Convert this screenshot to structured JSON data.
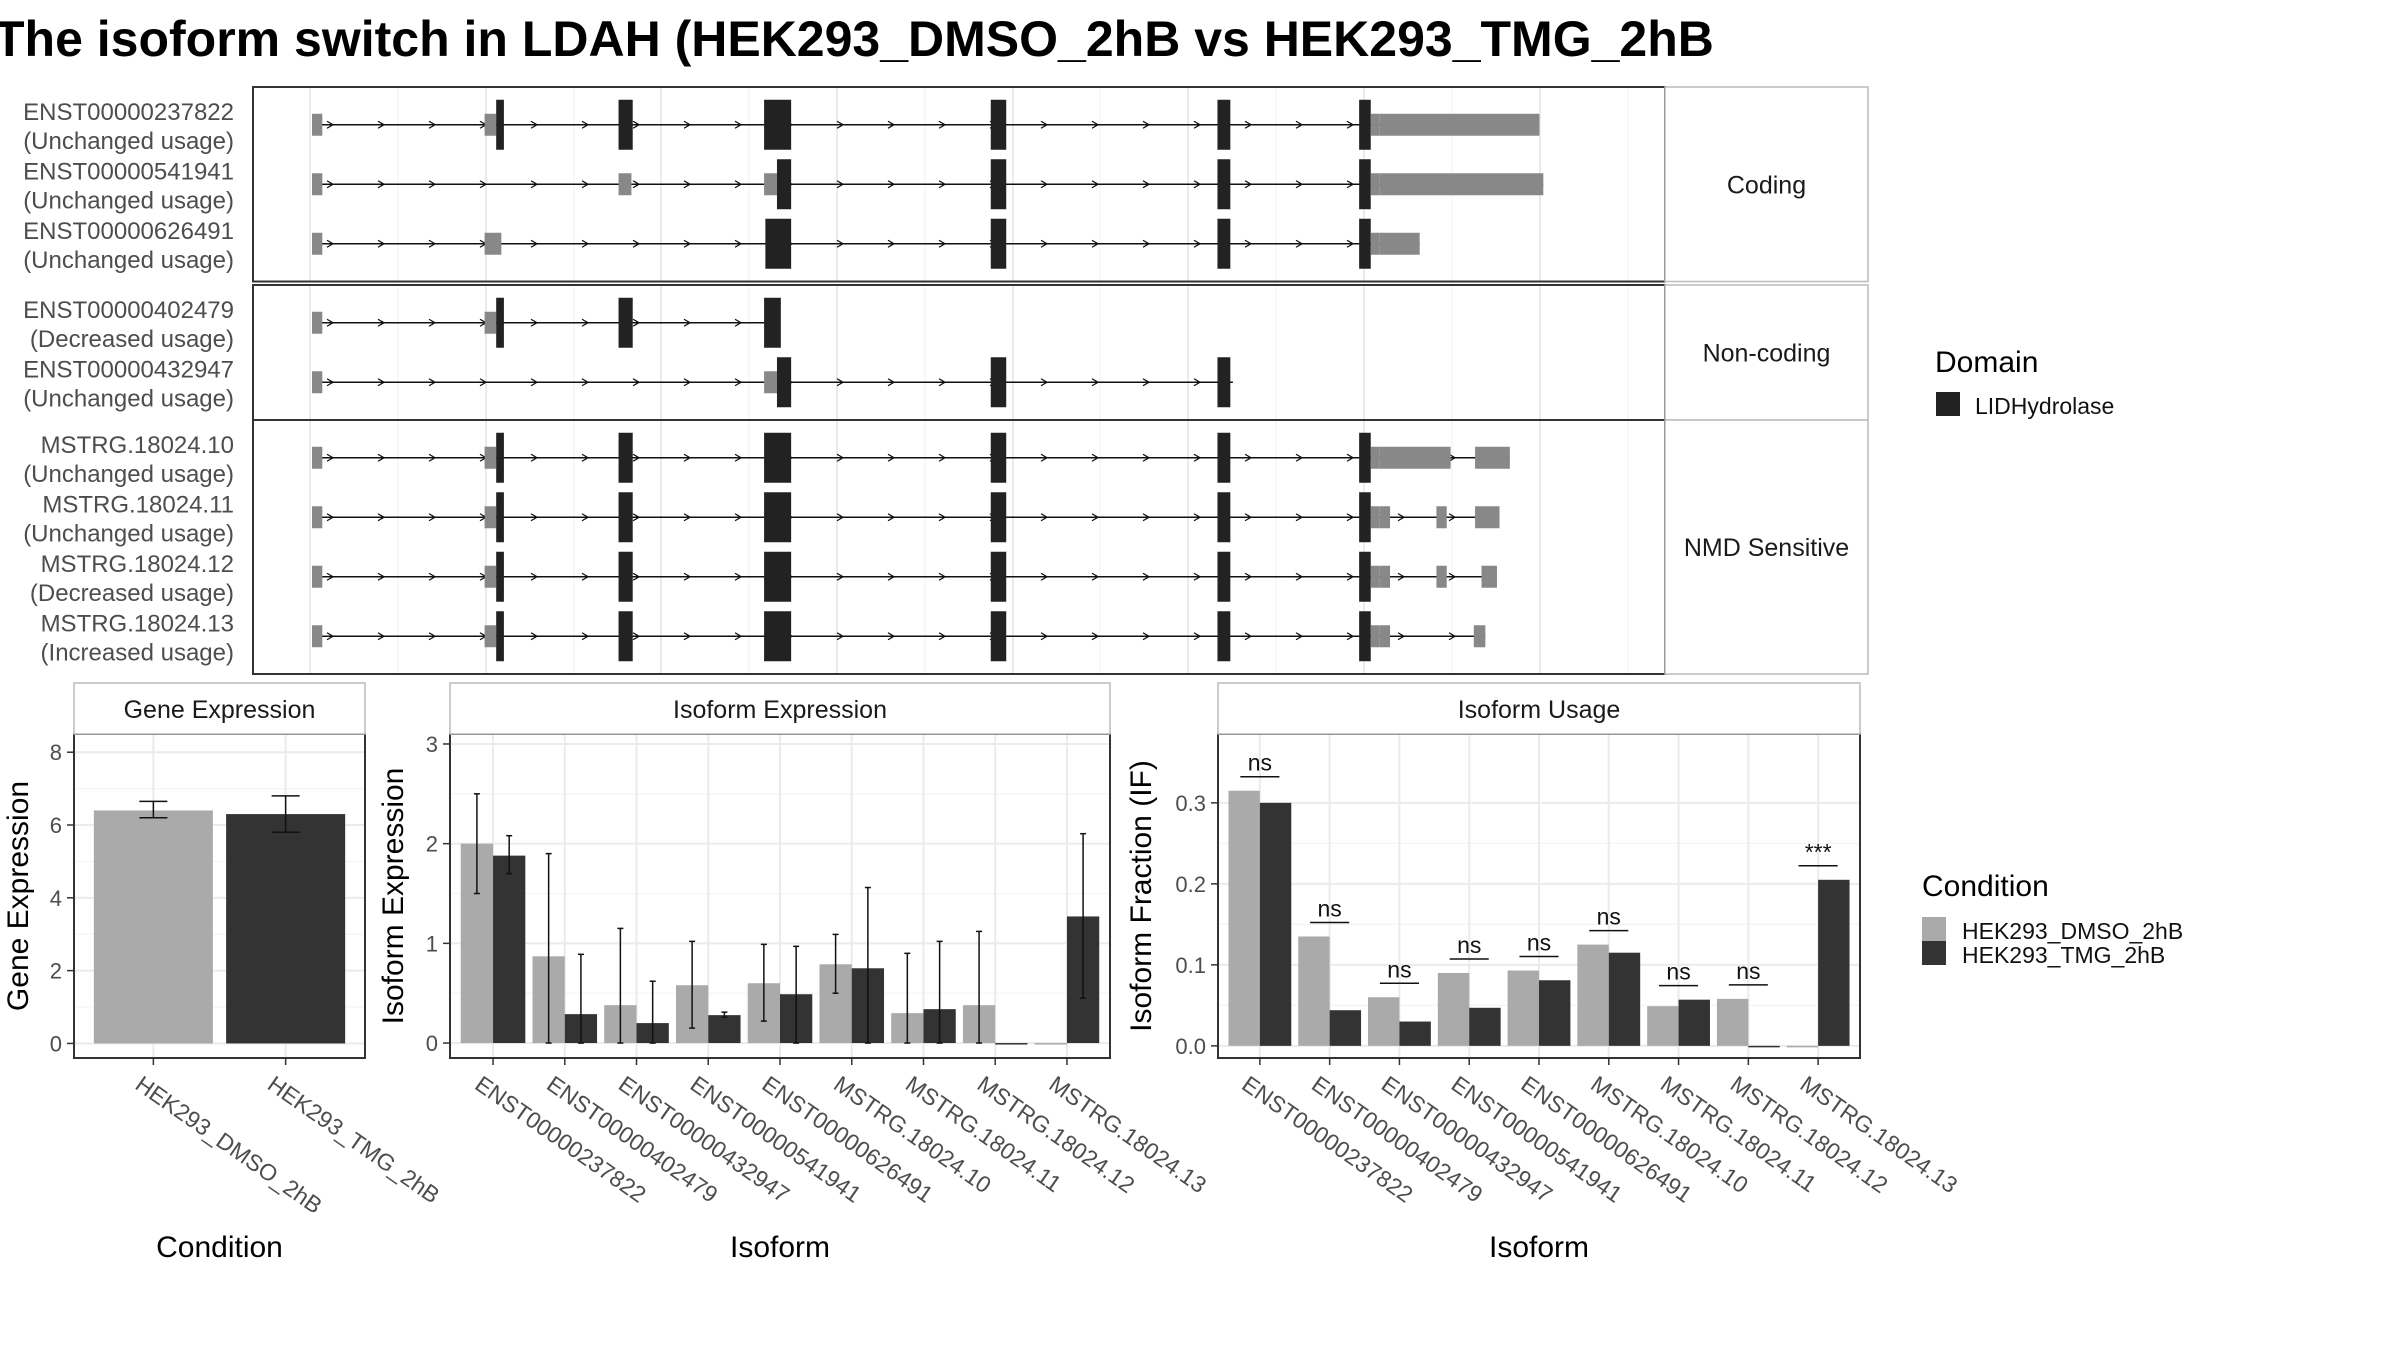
{
  "title": "The isoform switch in LDAH (HEK293_DMSO_2hB vs HEK293_TMG_2hB",
  "colors": {
    "dmso": "#aaaaaa",
    "tmg": "#333333",
    "domain": "#222222",
    "utr": "#888888",
    "grid": "#ebebeb",
    "frame": "#333333",
    "strip_border": "#bbbbbb"
  },
  "structure": {
    "genomic_range": [
      0,
      1000
    ],
    "groups": [
      {
        "label": "Coding",
        "transcripts": [
          {
            "name": "ENST00000237822",
            "usage": "(Unchanged usage)",
            "span": [
              0,
              950
            ],
            "exons": [
              [
                0,
                8,
                "utr"
              ],
              [
                134,
                143,
                "utr"
              ],
              [
                143,
                149,
                "cds"
              ],
              [
                238,
                249,
                "cds"
              ],
              [
                351,
                372,
                "cds"
              ],
              [
                527,
                539,
                "cds"
              ],
              [
                703,
                713,
                "cds"
              ],
              [
                813,
                822,
                "cds"
              ],
              [
                822,
                829,
                "utr"
              ],
              [
                829,
                953,
                "utr"
              ]
            ]
          },
          {
            "name": "ENST00000541941",
            "usage": "(Unchanged usage)",
            "span": [
              0,
              956
            ],
            "exons": [
              [
                0,
                8,
                "utr"
              ],
              [
                238,
                248,
                "utr"
              ],
              [
                351,
                361,
                "utr"
              ],
              [
                361,
                372,
                "cds"
              ],
              [
                527,
                539,
                "cds"
              ],
              [
                703,
                713,
                "cds"
              ],
              [
                813,
                822,
                "cds"
              ],
              [
                822,
                829,
                "utr"
              ],
              [
                829,
                956,
                "utr"
              ]
            ]
          },
          {
            "name": "ENST00000626491",
            "usage": "(Unchanged usage)",
            "span": [
              0,
              860
            ],
            "exons": [
              [
                0,
                8,
                "utr"
              ],
              [
                134,
                147,
                "utr"
              ],
              [
                352,
                372,
                "cds"
              ],
              [
                527,
                539,
                "cds"
              ],
              [
                703,
                713,
                "cds"
              ],
              [
                813,
                822,
                "cds"
              ],
              [
                822,
                829,
                "utr"
              ],
              [
                829,
                860,
                "utr"
              ]
            ]
          }
        ]
      },
      {
        "label": "Non-coding",
        "transcripts": [
          {
            "name": "ENST00000402479",
            "usage": "(Decreased usage)",
            "span": [
              0,
              362
            ],
            "exons": [
              [
                0,
                8,
                "utr"
              ],
              [
                134,
                143,
                "utr"
              ],
              [
                143,
                149,
                "cds"
              ],
              [
                238,
                249,
                "cds"
              ],
              [
                351,
                364,
                "cds"
              ]
            ]
          },
          {
            "name": "ENST00000432947",
            "usage": "(Unchanged usage)",
            "span": [
              0,
              715
            ],
            "exons": [
              [
                0,
                8,
                "utr"
              ],
              [
                351,
                361,
                "utr"
              ],
              [
                361,
                372,
                "cds"
              ],
              [
                527,
                539,
                "cds"
              ],
              [
                703,
                713,
                "cds"
              ]
            ]
          }
        ]
      },
      {
        "label": "NMD Sensitive",
        "transcripts": [
          {
            "name": "MSTRG.18024.10",
            "usage": "(Unchanged usage)",
            "span": [
              0,
              930
            ],
            "exons": [
              [
                0,
                8,
                "utr"
              ],
              [
                134,
                143,
                "utr"
              ],
              [
                143,
                149,
                "cds"
              ],
              [
                238,
                249,
                "cds"
              ],
              [
                351,
                372,
                "cds"
              ],
              [
                527,
                539,
                "cds"
              ],
              [
                703,
                713,
                "cds"
              ],
              [
                813,
                822,
                "cds"
              ],
              [
                822,
                829,
                "utr"
              ],
              [
                829,
                884,
                "utr"
              ],
              [
                903,
                930,
                "utr"
              ]
            ]
          },
          {
            "name": "MSTRG.18024.11",
            "usage": "(Unchanged usage)",
            "span": [
              0,
              922
            ],
            "exons": [
              [
                0,
                8,
                "utr"
              ],
              [
                134,
                143,
                "utr"
              ],
              [
                143,
                149,
                "cds"
              ],
              [
                238,
                249,
                "cds"
              ],
              [
                351,
                372,
                "cds"
              ],
              [
                527,
                539,
                "cds"
              ],
              [
                703,
                713,
                "cds"
              ],
              [
                813,
                822,
                "cds"
              ],
              [
                822,
                829,
                "utr"
              ],
              [
                829,
                837,
                "utr"
              ],
              [
                873,
                881,
                "utr"
              ],
              [
                903,
                922,
                "utr"
              ]
            ]
          },
          {
            "name": "MSTRG.18024.12",
            "usage": "(Decreased usage)",
            "span": [
              0,
              920
            ],
            "exons": [
              [
                0,
                8,
                "utr"
              ],
              [
                134,
                143,
                "utr"
              ],
              [
                143,
                149,
                "cds"
              ],
              [
                238,
                249,
                "cds"
              ],
              [
                351,
                372,
                "cds"
              ],
              [
                527,
                539,
                "cds"
              ],
              [
                703,
                713,
                "cds"
              ],
              [
                813,
                822,
                "cds"
              ],
              [
                822,
                829,
                "utr"
              ],
              [
                829,
                837,
                "utr"
              ],
              [
                873,
                881,
                "utr"
              ],
              [
                908,
                920,
                "utr"
              ]
            ]
          },
          {
            "name": "MSTRG.18024.13",
            "usage": "(Increased usage)",
            "span": [
              0,
              911
            ],
            "exons": [
              [
                0,
                8,
                "utr"
              ],
              [
                134,
                143,
                "utr"
              ],
              [
                143,
                149,
                "cds"
              ],
              [
                238,
                249,
                "cds"
              ],
              [
                351,
                372,
                "cds"
              ],
              [
                527,
                539,
                "cds"
              ],
              [
                703,
                713,
                "cds"
              ],
              [
                813,
                822,
                "cds"
              ],
              [
                822,
                829,
                "utr"
              ],
              [
                829,
                837,
                "utr"
              ],
              [
                902,
                911,
                "utr"
              ]
            ]
          }
        ]
      }
    ]
  },
  "legends": {
    "domain": {
      "title": "Domain",
      "items": [
        {
          "label": "LIDHydrolase"
        }
      ]
    },
    "condition": {
      "title": "Condition",
      "items": [
        {
          "label": "HEK293_DMSO_2hB"
        },
        {
          "label": "HEK293_TMG_2hB"
        }
      ]
    }
  },
  "chart_data": [
    {
      "type": "bar",
      "title": "Gene Expression",
      "xlabel": "Condition",
      "ylabel": "Gene Expression",
      "ylim": [
        -0.4,
        8.5
      ],
      "yticks": [
        0,
        2,
        4,
        6,
        8
      ],
      "categories": [
        "HEK293_DMSO_2hB",
        "HEK293_TMG_2hB"
      ],
      "values": [
        6.4,
        6.3
      ],
      "error_low": [
        6.2,
        5.8
      ],
      "error_high": [
        6.65,
        6.8
      ]
    },
    {
      "type": "bar",
      "title": "Isoform Expression",
      "xlabel": "Isoform",
      "ylabel": "Isoform Expression",
      "ylim": [
        -0.15,
        3.1
      ],
      "yticks": [
        0,
        1,
        2,
        3
      ],
      "categories": [
        "ENST00000237822",
        "ENST00000402479",
        "ENST00000432947",
        "ENST00000541941",
        "ENST00000626491",
        "MSTRG.18024.10",
        "MSTRG.18024.11",
        "MSTRG.18024.12",
        "MSTRG.18024.13"
      ],
      "series": [
        {
          "name": "HEK293_DMSO_2hB",
          "values": [
            2.0,
            0.87,
            0.38,
            0.58,
            0.6,
            0.79,
            0.3,
            0.38,
            0.0
          ],
          "error_low": [
            1.5,
            0.0,
            0.0,
            0.15,
            0.22,
            0.5,
            0.0,
            0.0,
            null
          ],
          "error_high": [
            2.5,
            1.9,
            1.15,
            1.02,
            0.99,
            1.09,
            0.9,
            1.12,
            null
          ]
        },
        {
          "name": "HEK293_TMG_2hB",
          "values": [
            1.88,
            0.29,
            0.2,
            0.28,
            0.49,
            0.75,
            0.34,
            0.0,
            1.27
          ],
          "error_low": [
            1.7,
            0.0,
            0.0,
            0.26,
            0.0,
            0.0,
            0.0,
            null,
            0.45
          ],
          "error_high": [
            2.08,
            0.89,
            0.62,
            0.31,
            0.97,
            1.56,
            1.02,
            null,
            2.1
          ]
        }
      ]
    },
    {
      "type": "bar",
      "title": "Isoform Usage",
      "xlabel": "Isoform",
      "ylabel": "Isoform Fraction (IF)",
      "ylim": [
        -0.015,
        0.385
      ],
      "yticks": [
        0.0,
        0.1,
        0.2,
        0.3
      ],
      "ytick_labels": [
        "0.0",
        "0.1",
        "0.2",
        "0.3"
      ],
      "categories": [
        "ENST00000237822",
        "ENST00000402479",
        "ENST00000432947",
        "ENST00000541941",
        "ENST00000626491",
        "MSTRG.18024.10",
        "MSTRG.18024.11",
        "MSTRG.18024.12",
        "MSTRG.18024.13"
      ],
      "series": [
        {
          "name": "HEK293_DMSO_2hB",
          "values": [
            0.315,
            0.135,
            0.06,
            0.09,
            0.093,
            0.125,
            0.049,
            0.058,
            0.0
          ]
        },
        {
          "name": "HEK293_TMG_2hB",
          "values": [
            0.3,
            0.044,
            0.03,
            0.047,
            0.081,
            0.115,
            0.057,
            0.0,
            0.205
          ]
        }
      ],
      "significance": [
        "ns",
        "ns",
        "ns",
        "ns",
        "ns",
        "ns",
        "ns",
        "ns",
        "***"
      ]
    }
  ]
}
